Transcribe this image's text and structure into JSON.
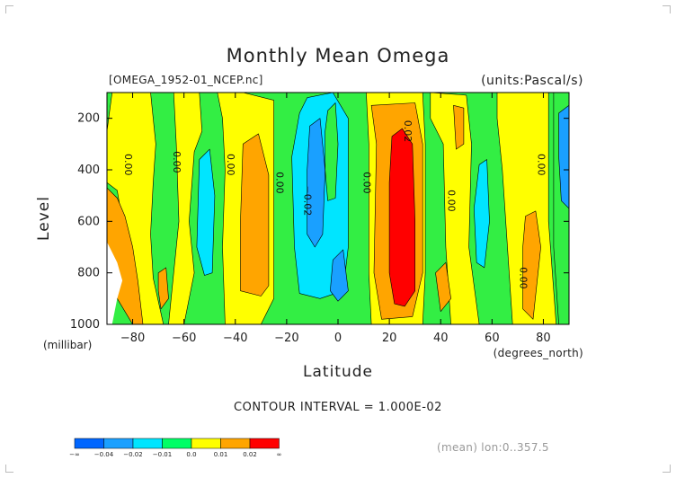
{
  "chart_data": {
    "type": "contour",
    "title": "Monthly Mean Omega",
    "source_label": "[OMEGA_1952-01_NCEP.nc]",
    "units_label": "(units:Pascal/s)",
    "xlabel": "Latitude",
    "x_unit_label": "(degrees_north)",
    "ylabel": "Level",
    "y_unit_label": "(millibar)",
    "xlim": [
      -90,
      90
    ],
    "ylim": [
      1000,
      100
    ],
    "x_ticks": [
      -80,
      -60,
      -40,
      -20,
      0,
      20,
      40,
      60,
      80
    ],
    "x_tick_labels": [
      "−80",
      "−60",
      "−40",
      "−20",
      "0",
      "20",
      "40",
      "60",
      "80"
    ],
    "y_ticks": [
      200,
      400,
      600,
      800,
      1000
    ],
    "y_tick_labels": [
      "200",
      "400",
      "600",
      "800",
      "1000"
    ],
    "contour_interval_label": "CONTOUR INTERVAL = 1.000E-02",
    "footer_label": "(mean) lon:0..357.5",
    "levels": [
      {
        "label": "−∞",
        "color": "#0066ff"
      },
      {
        "label": "−0.04",
        "color": "#1aa0ff"
      },
      {
        "label": "−0.02",
        "color": "#00e5ff"
      },
      {
        "label": "−0.01",
        "color": "#00ff66"
      },
      {
        "label": "0.0",
        "color": "#ffff00"
      },
      {
        "label": "0.01",
        "color": "#ffa500"
      },
      {
        "label": "0.02",
        "color": "#ff0000"
      },
      {
        "label": "∞",
        "color": ""
      }
    ],
    "base_color": "#33ee44",
    "regions": [
      {
        "color": "#ffff00",
        "points": [
          [
            -90,
            450
          ],
          [
            -86,
            480
          ],
          [
            -84,
            600
          ],
          [
            -81,
            700
          ],
          [
            -79,
            820
          ],
          [
            -77,
            1000
          ],
          [
            -68,
            1000
          ],
          [
            -72,
            820
          ],
          [
            -73,
            650
          ],
          [
            -72,
            450
          ],
          [
            -71,
            300
          ],
          [
            -73,
            100
          ],
          [
            -88,
            100
          ],
          [
            -90,
            250
          ]
        ]
      },
      {
        "color": "#ffa500",
        "points": [
          [
            -90,
            470
          ],
          [
            -86,
            510
          ],
          [
            -83,
            580
          ],
          [
            -80,
            700
          ],
          [
            -78,
            830
          ],
          [
            -76,
            1000
          ],
          [
            -80,
            1000
          ],
          [
            -86,
            900
          ],
          [
            -88,
            770
          ],
          [
            -90,
            680
          ]
        ]
      },
      {
        "color": "#ffff00",
        "points": [
          [
            -64,
            100
          ],
          [
            -54,
            100
          ],
          [
            -53,
            250
          ],
          [
            -56,
            330
          ],
          [
            -58,
            600
          ],
          [
            -56,
            800
          ],
          [
            -60,
            1000
          ],
          [
            -66,
            1000
          ],
          [
            -64,
            800
          ],
          [
            -62,
            600
          ],
          [
            -63,
            300
          ]
        ]
      },
      {
        "color": "#ffa500",
        "points": [
          [
            -70,
            800
          ],
          [
            -67,
            780
          ],
          [
            -66,
            900
          ],
          [
            -69,
            940
          ],
          [
            -70,
            870
          ]
        ]
      },
      {
        "color": "#ffff00",
        "points": [
          [
            -47,
            100
          ],
          [
            -37,
            100
          ],
          [
            -25,
            130
          ],
          [
            -25,
            900
          ],
          [
            -30,
            1000
          ],
          [
            -44,
            1000
          ],
          [
            -45,
            700
          ],
          [
            -44,
            400
          ],
          [
            -45,
            200
          ]
        ]
      },
      {
        "color": "#ffa500",
        "points": [
          [
            -37,
            300
          ],
          [
            -31,
            260
          ],
          [
            -27,
            420
          ],
          [
            -27,
            850
          ],
          [
            -30,
            890
          ],
          [
            -38,
            870
          ],
          [
            -38,
            600
          ]
        ]
      },
      {
        "color": "#00e5ff",
        "points": [
          [
            -54,
            360
          ],
          [
            -50,
            320
          ],
          [
            -48,
            500
          ],
          [
            -49,
            800
          ],
          [
            -52,
            810
          ],
          [
            -55,
            700
          ]
        ]
      },
      {
        "color": "#00e5ff",
        "points": [
          [
            -15,
            180
          ],
          [
            -12,
            120
          ],
          [
            -2,
            100
          ],
          [
            4,
            200
          ],
          [
            4,
            700
          ],
          [
            2,
            870
          ],
          [
            -7,
            900
          ],
          [
            -15,
            880
          ],
          [
            -17,
            700
          ],
          [
            -18,
            350
          ]
        ]
      },
      {
        "color": "#1aa0ff",
        "points": [
          [
            -11,
            230
          ],
          [
            -7,
            200
          ],
          [
            -5,
            400
          ],
          [
            -6,
            650
          ],
          [
            -9,
            700
          ],
          [
            -12,
            650
          ],
          [
            -12,
            400
          ]
        ]
      },
      {
        "color": "#1aa0ff",
        "points": [
          [
            -2,
            750
          ],
          [
            2,
            710
          ],
          [
            4,
            870
          ],
          [
            0,
            910
          ],
          [
            -3,
            870
          ]
        ]
      },
      {
        "color": "#33ee44",
        "points": [
          [
            -4,
            170
          ],
          [
            -1,
            140
          ],
          [
            0,
            300
          ],
          [
            -1,
            510
          ],
          [
            -4,
            520
          ],
          [
            -5,
            400
          ],
          [
            -5,
            250
          ]
        ]
      },
      {
        "color": "#ffff00",
        "points": [
          [
            11,
            100
          ],
          [
            33,
            100
          ],
          [
            34,
            300
          ],
          [
            34,
            800
          ],
          [
            33,
            1000
          ],
          [
            13,
            1000
          ],
          [
            12,
            800
          ],
          [
            12,
            300
          ]
        ]
      },
      {
        "color": "#ffa500",
        "points": [
          [
            13,
            150
          ],
          [
            30,
            140
          ],
          [
            33,
            300
          ],
          [
            33,
            800
          ],
          [
            29,
            970
          ],
          [
            17,
            980
          ],
          [
            14,
            800
          ],
          [
            15,
            300
          ]
        ]
      },
      {
        "color": "#ff0000",
        "points": [
          [
            21,
            270
          ],
          [
            25,
            240
          ],
          [
            29,
            300
          ],
          [
            30,
            600
          ],
          [
            30,
            870
          ],
          [
            26,
            930
          ],
          [
            22,
            920
          ],
          [
            20,
            800
          ],
          [
            20,
            450
          ]
        ]
      },
      {
        "color": "#ffff00",
        "points": [
          [
            36,
            100
          ],
          [
            50,
            110
          ],
          [
            52,
            300
          ],
          [
            51,
            700
          ],
          [
            55,
            1000
          ],
          [
            44,
            1000
          ],
          [
            42,
            700
          ],
          [
            41,
            300
          ],
          [
            36,
            200
          ]
        ]
      },
      {
        "color": "#ffa500",
        "points": [
          [
            45,
            150
          ],
          [
            49,
            160
          ],
          [
            49,
            300
          ],
          [
            46,
            320
          ]
        ]
      },
      {
        "color": "#ffa500",
        "points": [
          [
            38,
            800
          ],
          [
            42,
            760
          ],
          [
            44,
            900
          ],
          [
            40,
            950
          ]
        ]
      },
      {
        "color": "#00e5ff",
        "points": [
          [
            55,
            380
          ],
          [
            58,
            360
          ],
          [
            59,
            600
          ],
          [
            57,
            780
          ],
          [
            54,
            760
          ],
          [
            53,
            550
          ]
        ]
      },
      {
        "color": "#ffff00",
        "points": [
          [
            62,
            100
          ],
          [
            82,
            100
          ],
          [
            82,
            300
          ],
          [
            82,
            600
          ],
          [
            85,
            1000
          ],
          [
            68,
            1000
          ],
          [
            66,
            700
          ],
          [
            64,
            400
          ],
          [
            62,
            200
          ]
        ]
      },
      {
        "color": "#ffa500",
        "points": [
          [
            73,
            580
          ],
          [
            77,
            560
          ],
          [
            79,
            700
          ],
          [
            76,
            980
          ],
          [
            72,
            940
          ],
          [
            72,
            700
          ]
        ]
      },
      {
        "color": "#33ee44",
        "points": [
          [
            84,
            100
          ],
          [
            90,
            100
          ],
          [
            90,
            1000
          ],
          [
            86,
            1000
          ],
          [
            84,
            700
          ],
          [
            84,
            400
          ]
        ]
      },
      {
        "color": "#1aa0ff",
        "points": [
          [
            86,
            180
          ],
          [
            90,
            150
          ],
          [
            90,
            550
          ],
          [
            87,
            520
          ],
          [
            86,
            350
          ]
        ]
      }
    ],
    "white_gap": [
      [
        -90,
        680
      ],
      [
        -86,
        760
      ],
      [
        -84,
        830
      ],
      [
        -86,
        900
      ],
      [
        -88,
        1000
      ],
      [
        -90,
        1000
      ]
    ],
    "contour_labels": [
      {
        "text": "0.00",
        "x": -82,
        "y": 380
      },
      {
        "text": "0.00",
        "x": -63,
        "y": 370
      },
      {
        "text": "0.00",
        "x": -42,
        "y": 380
      },
      {
        "text": "0.00",
        "x": -23,
        "y": 450
      },
      {
        "text": "−0.02",
        "x": -12,
        "y": 520
      },
      {
        "text": "0.00",
        "x": 11,
        "y": 450
      },
      {
        "text": "0.02",
        "x": 27,
        "y": 250
      },
      {
        "text": "0.00",
        "x": 44,
        "y": 520
      },
      {
        "text": "0.00",
        "x": 79,
        "y": 380
      },
      {
        "text": "0.00",
        "x": 72,
        "y": 820
      }
    ]
  }
}
